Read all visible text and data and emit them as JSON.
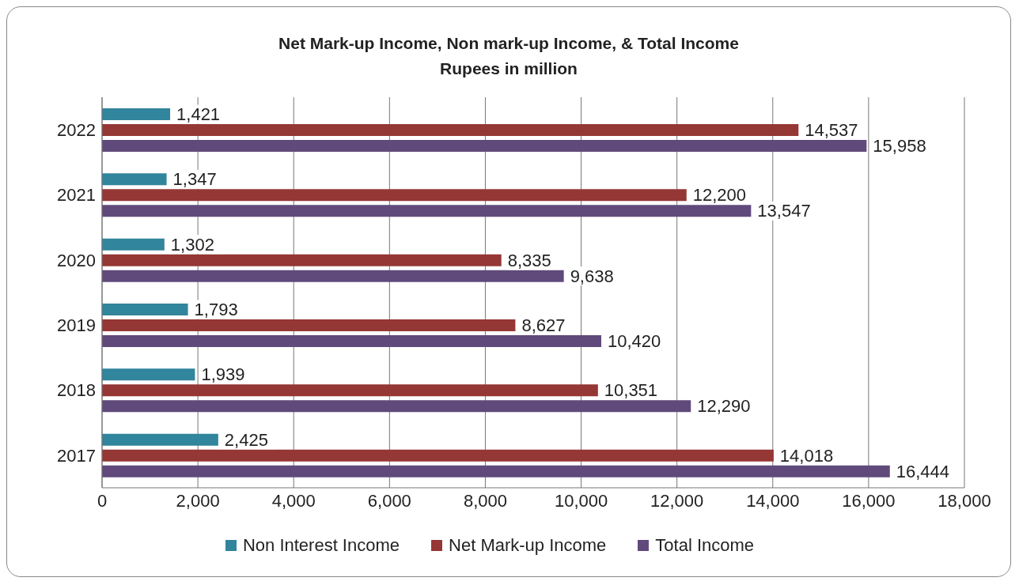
{
  "chart_data": {
    "type": "bar",
    "orientation": "horizontal",
    "title": "Net Mark-up Income, Non mark-up Income, & Total Income",
    "subtitle": "Rupees in million",
    "categories": [
      "2022",
      "2021",
      "2020",
      "2019",
      "2018",
      "2017"
    ],
    "series": [
      {
        "name": "Non Interest Income",
        "color": "#31859c",
        "values": [
          1421,
          1347,
          1302,
          1793,
          1939,
          2425
        ],
        "value_labels": [
          "1,421",
          "1,347",
          "1,302",
          "1,793",
          "1,939",
          "2,425"
        ]
      },
      {
        "name": "Net Mark-up Income",
        "color": "#953735",
        "values": [
          14537,
          12200,
          8335,
          8627,
          10351,
          14018
        ],
        "value_labels": [
          "14,537",
          "12,200",
          "8,335",
          "8,627",
          "10,351",
          "14,018"
        ]
      },
      {
        "name": "Total Income",
        "color": "#604a7b",
        "values": [
          15958,
          13547,
          9638,
          10420,
          12290,
          16444
        ],
        "value_labels": [
          "15,958",
          "13,547",
          "9,638",
          "10,420",
          "12,290",
          "16,444"
        ]
      }
    ],
    "xlim": [
      0,
      18000
    ],
    "xticks": [
      0,
      {
        "value": 2000,
        "label": "2,000"
      },
      {
        "value": 4000,
        "label": "4,000"
      },
      {
        "value": 6000,
        "label": "6,000"
      },
      {
        "value": 8000,
        "label": "8,000"
      },
      {
        "value": 10000,
        "label": "10,000"
      },
      {
        "value": 12000,
        "label": "12,000"
      },
      {
        "value": 14000,
        "label": "14,000"
      },
      {
        "value": 16000,
        "label": "16,000"
      },
      {
        "value": 18000,
        "label": "18,000"
      }
    ],
    "grid": "x",
    "legend": "bottom"
  }
}
